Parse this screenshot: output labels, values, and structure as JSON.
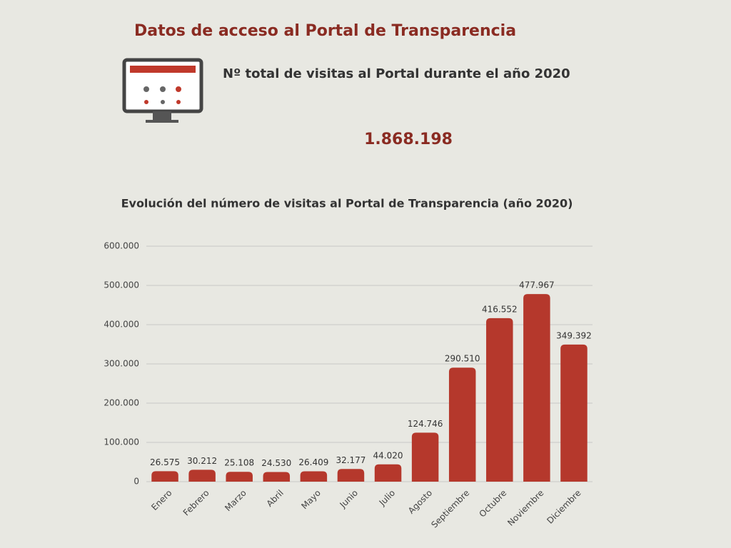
{
  "header": {
    "title": "Datos de acceso al Portal de Transparencia",
    "subtitle": "Nº total de visitas al Portal durante el año 2020",
    "total": "1.868.198"
  },
  "chart_data": {
    "type": "bar",
    "title": "Evolución del número de visitas al Portal de Transparencia (año 2020)",
    "categories": [
      "Enero",
      "Febrero",
      "Marzo",
      "Abril",
      "Mayo",
      "Junio",
      "Julio",
      "Agosto",
      "Septiembre",
      "Octubre",
      "Noviembre",
      "Diciembre"
    ],
    "values": [
      26575,
      30212,
      25108,
      24530,
      26409,
      32177,
      44020,
      124746,
      290510,
      416552,
      477967,
      349392
    ],
    "value_labels": [
      "26.575",
      "30.212",
      "25.108",
      "24.530",
      "26.409",
      "32.177",
      "44.020",
      "124.746",
      "290.510",
      "416.552",
      "477.967",
      "349.392"
    ],
    "color": "#b5382c",
    "ylim": [
      0,
      600000
    ],
    "yticks": [
      0,
      {
        "value": 100000,
        "label": "100.000"
      },
      {
        "value": 200000,
        "label": "200.000"
      },
      {
        "value": 300000,
        "label": "300.000"
      },
      {
        "value": 400000,
        "label": "400.000"
      },
      {
        "value": 500000,
        "label": "500.000"
      },
      {
        "value": 600000,
        "label": "600.000"
      }
    ],
    "grid": true
  }
}
